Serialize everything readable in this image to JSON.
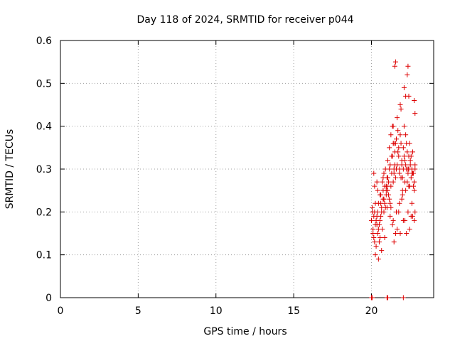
{
  "chart_data": {
    "type": "scatter",
    "title": "Day 118 of 2024, SRMTID for receiver p044",
    "xlabel": "GPS time / hours",
    "ylabel": "SRMTID / TECUs",
    "xlim": [
      0,
      24
    ],
    "ylim": [
      0,
      0.6
    ],
    "x_ticks": [
      0,
      5,
      10,
      15,
      20
    ],
    "x_tick_labels": [
      "0",
      "5",
      "10",
      "15",
      "20"
    ],
    "y_ticks": [
      0,
      0.1,
      0.2,
      0.3,
      0.4,
      0.5,
      0.6
    ],
    "y_tick_labels": [
      "0",
      "0.1",
      "0.2",
      "0.3",
      "0.4",
      "0.5",
      "0.6"
    ],
    "grid": true,
    "marker": "plus",
    "marker_color": "#dd0000",
    "series": [
      {
        "x": [
          20.0,
          20.05,
          20.1,
          20.15,
          20.2,
          20.25,
          20.3,
          20.35,
          20.4,
          20.45,
          20.5,
          20.55,
          20.6,
          20.65,
          20.7,
          20.75,
          20.8,
          20.85,
          20.9,
          20.95,
          21.0,
          21.05,
          21.1,
          21.15,
          21.2,
          21.25,
          21.3,
          21.35,
          21.4,
          21.45,
          21.5,
          21.55,
          21.6,
          21.65,
          21.7,
          21.75,
          21.8,
          21.85,
          21.9,
          21.95,
          22.0,
          22.05,
          22.1,
          22.15,
          22.2,
          22.25,
          22.3,
          22.35,
          22.4,
          22.45,
          22.5,
          22.55,
          22.6,
          22.65,
          22.7,
          22.75,
          22.8,
          20.05,
          20.15,
          20.25,
          20.35,
          20.45,
          20.55,
          20.65,
          20.75,
          20.85,
          20.95,
          21.05,
          21.15,
          21.25,
          21.35,
          21.45,
          21.55,
          21.65,
          21.75,
          21.85,
          21.95,
          22.05,
          22.15,
          22.25,
          22.35,
          22.45,
          22.55,
          22.65,
          22.75,
          20.1,
          20.2,
          20.3,
          20.4,
          20.5,
          20.6,
          20.7,
          20.8,
          20.9,
          21.0,
          21.1,
          21.2,
          21.3,
          21.4,
          21.5,
          21.6,
          21.7,
          21.8,
          21.9,
          22.0,
          22.1,
          22.2,
          22.3,
          22.4,
          22.5,
          22.6,
          22.7,
          22.8,
          20.2,
          20.4,
          20.6,
          20.8,
          21.0,
          21.2,
          21.4,
          21.6,
          21.8,
          22.0,
          22.2,
          22.4,
          22.6,
          22.8,
          20.15,
          20.35,
          20.55,
          20.75,
          20.95,
          21.15,
          21.35,
          21.55,
          21.75,
          21.95,
          22.15,
          22.35,
          22.55,
          22.75,
          20.25,
          20.45,
          20.65,
          20.85,
          21.05,
          21.25,
          21.45,
          21.65,
          21.85,
          22.05,
          22.25,
          22.45,
          22.65,
          21.5,
          21.55,
          22.3,
          22.35,
          22.2,
          22.1,
          21.9,
          22.4,
          22.75,
          22.8,
          21.4,
          21.45,
          20.0,
          20.05,
          21.0,
          21.05,
          22.05
        ],
        "y": [
          0.18,
          0.21,
          0.16,
          0.14,
          0.2,
          0.17,
          0.12,
          0.19,
          0.15,
          0.22,
          0.13,
          0.18,
          0.24,
          0.2,
          0.27,
          0.23,
          0.29,
          0.26,
          0.3,
          0.25,
          0.28,
          0.32,
          0.27,
          0.35,
          0.31,
          0.38,
          0.33,
          0.4,
          0.36,
          0.3,
          0.34,
          0.28,
          0.37,
          0.42,
          0.39,
          0.33,
          0.3,
          0.45,
          0.36,
          0.31,
          0.28,
          0.35,
          0.4,
          0.32,
          0.38,
          0.3,
          0.34,
          0.29,
          0.33,
          0.36,
          0.31,
          0.28,
          0.3,
          0.34,
          0.29,
          0.27,
          0.31,
          0.2,
          0.19,
          0.22,
          0.17,
          0.16,
          0.14,
          0.21,
          0.25,
          0.22,
          0.24,
          0.28,
          0.3,
          0.26,
          0.33,
          0.29,
          0.36,
          0.31,
          0.35,
          0.38,
          0.32,
          0.3,
          0.27,
          0.36,
          0.3,
          0.26,
          0.33,
          0.29,
          0.25,
          0.15,
          0.13,
          0.18,
          0.2,
          0.17,
          0.19,
          0.16,
          0.23,
          0.21,
          0.26,
          0.24,
          0.22,
          0.29,
          0.27,
          0.31,
          0.3,
          0.34,
          0.29,
          0.28,
          0.25,
          0.33,
          0.31,
          0.27,
          0.3,
          0.32,
          0.29,
          0.26,
          0.3,
          0.26,
          0.25,
          0.22,
          0.2,
          0.21,
          0.19,
          0.18,
          0.2,
          0.22,
          0.24,
          0.25,
          0.26,
          0.22,
          0.2,
          0.29,
          0.27,
          0.24,
          0.28,
          0.26,
          0.23,
          0.17,
          0.15,
          0.2,
          0.23,
          0.18,
          0.2,
          0.19,
          0.18,
          0.1,
          0.09,
          0.11,
          0.14,
          0.25,
          0.21,
          0.13,
          0.16,
          0.15,
          0.18,
          0.15,
          0.16,
          0.19,
          0.54,
          0.55,
          0.52,
          0.54,
          0.47,
          0.49,
          0.44,
          0.47,
          0.46,
          0.43,
          0.4,
          0.36,
          0.0,
          0.0,
          0.0,
          0.0,
          0.0
        ]
      }
    ]
  }
}
